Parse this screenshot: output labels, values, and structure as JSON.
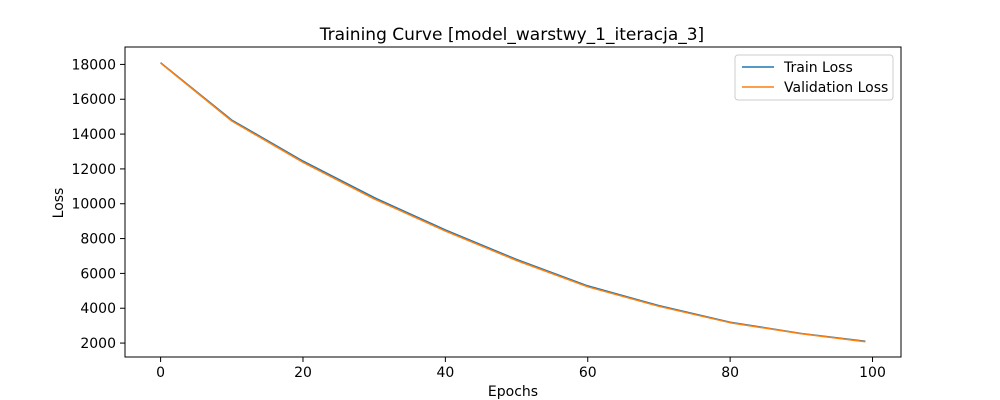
{
  "chart_data": {
    "type": "line",
    "title": "Training Curve [model_warstwy_1_iteracja_3]",
    "xlabel": "Epochs",
    "ylabel": "Loss",
    "xlim": [
      -5,
      104
    ],
    "ylim": [
      1200,
      19000
    ],
    "xticks": [
      0,
      20,
      40,
      60,
      80,
      100
    ],
    "yticks": [
      2000,
      4000,
      6000,
      8000,
      10000,
      12000,
      14000,
      16000,
      18000
    ],
    "grid": false,
    "legend_position": "top-right",
    "series": [
      {
        "name": "Train Loss",
        "color": "#1f77b4",
        "x": [
          0,
          10,
          20,
          30,
          40,
          50,
          60,
          70,
          80,
          90,
          99
        ],
        "y": [
          18100,
          14800,
          12450,
          10350,
          8500,
          6800,
          5280,
          4150,
          3200,
          2550,
          2100
        ]
      },
      {
        "name": "Validation Loss",
        "color": "#ff7f0e",
        "x": [
          0,
          10,
          20,
          30,
          40,
          50,
          60,
          70,
          80,
          90,
          99
        ],
        "y": [
          18080,
          14750,
          12380,
          10280,
          8430,
          6740,
          5230,
          4110,
          3170,
          2530,
          2080
        ]
      }
    ]
  }
}
